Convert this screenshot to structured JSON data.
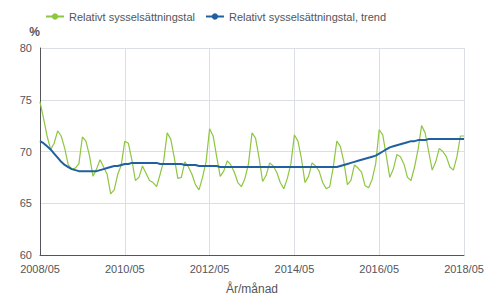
{
  "chart_data": {
    "type": "line",
    "xlabel": "År/månad",
    "ylabel": "%",
    "categories": [
      "2008/05",
      null,
      null,
      null,
      null,
      null,
      null,
      null,
      null,
      null,
      null,
      null,
      null,
      null,
      null,
      null,
      null,
      null,
      null,
      null,
      null,
      null,
      null,
      null,
      "2010/05",
      null,
      null,
      null,
      null,
      null,
      null,
      null,
      null,
      null,
      null,
      null,
      null,
      null,
      null,
      null,
      null,
      null,
      null,
      null,
      null,
      null,
      null,
      null,
      "2012/05",
      null,
      null,
      null,
      null,
      null,
      null,
      null,
      null,
      null,
      null,
      null,
      null,
      null,
      null,
      null,
      null,
      null,
      null,
      null,
      null,
      null,
      null,
      null,
      "2014/05",
      null,
      null,
      null,
      null,
      null,
      null,
      null,
      null,
      null,
      null,
      null,
      null,
      null,
      null,
      null,
      null,
      null,
      null,
      null,
      null,
      null,
      null,
      null,
      "2016/05",
      null,
      null,
      null,
      null,
      null,
      null,
      null,
      null,
      null,
      null,
      null,
      null,
      null,
      null,
      null,
      null,
      null,
      null,
      null,
      null,
      null,
      null,
      null,
      "2018/05"
    ],
    "series": [
      {
        "name": "Relativt sysselsättningstal",
        "color": "#8dc63f",
        "values": [
          74.8,
          73.2,
          71.5,
          70.2,
          70.8,
          72.0,
          71.5,
          70.3,
          68.7,
          68.3,
          68.4,
          68.8,
          71.4,
          71.0,
          69.6,
          67.6,
          68.3,
          69.2,
          68.5,
          67.8,
          65.9,
          66.3,
          67.8,
          68.7,
          71.0,
          70.8,
          69.2,
          67.2,
          67.5,
          68.6,
          67.9,
          67.2,
          67.0,
          66.6,
          67.8,
          69.1,
          71.8,
          71.2,
          69.4,
          67.4,
          67.5,
          69.0,
          68.5,
          67.8,
          66.8,
          66.3,
          67.5,
          69.0,
          72.2,
          71.5,
          69.5,
          67.6,
          68.1,
          69.1,
          68.7,
          68.0,
          67.0,
          66.6,
          67.4,
          68.8,
          71.8,
          71.3,
          69.4,
          67.1,
          67.7,
          68.9,
          68.6,
          68.0,
          67.0,
          66.4,
          67.4,
          68.8,
          71.6,
          71.0,
          69.3,
          67.0,
          67.6,
          68.9,
          68.6,
          68.1,
          67.0,
          66.4,
          66.6,
          68.5,
          71.0,
          70.5,
          69.0,
          66.8,
          67.2,
          68.7,
          68.4,
          68.0,
          66.7,
          66.5,
          67.3,
          68.8,
          72.1,
          71.6,
          69.6,
          67.5,
          68.3,
          69.7,
          69.5,
          68.8,
          67.5,
          67.2,
          68.5,
          70.2,
          72.5,
          71.8,
          70.0,
          68.2,
          69.0,
          70.3,
          70.0,
          69.5,
          68.5,
          68.2,
          69.5,
          71.5,
          71.5
        ]
      },
      {
        "name": "Relativt sysselsättningstal, trend",
        "color": "#2060a0",
        "values": [
          71.0,
          70.8,
          70.5,
          70.2,
          69.8,
          69.4,
          69.0,
          68.7,
          68.5,
          68.3,
          68.2,
          68.1,
          68.1,
          68.1,
          68.1,
          68.1,
          68.1,
          68.2,
          68.3,
          68.4,
          68.5,
          68.6,
          68.6,
          68.7,
          68.8,
          68.8,
          68.9,
          68.9,
          68.9,
          68.9,
          68.9,
          68.9,
          68.9,
          68.9,
          68.8,
          68.8,
          68.8,
          68.8,
          68.8,
          68.8,
          68.8,
          68.7,
          68.7,
          68.7,
          68.7,
          68.6,
          68.6,
          68.6,
          68.6,
          68.6,
          68.6,
          68.5,
          68.5,
          68.5,
          68.5,
          68.5,
          68.5,
          68.5,
          68.5,
          68.5,
          68.5,
          68.5,
          68.5,
          68.5,
          68.5,
          68.5,
          68.5,
          68.5,
          68.5,
          68.5,
          68.5,
          68.5,
          68.5,
          68.5,
          68.5,
          68.5,
          68.5,
          68.5,
          68.5,
          68.5,
          68.5,
          68.5,
          68.5,
          68.5,
          68.5,
          68.6,
          68.7,
          68.8,
          68.9,
          69.0,
          69.1,
          69.2,
          69.3,
          69.4,
          69.5,
          69.6,
          69.8,
          70.0,
          70.2,
          70.4,
          70.5,
          70.6,
          70.7,
          70.8,
          70.9,
          71.0,
          71.0,
          71.1,
          71.1,
          71.1,
          71.2,
          71.2,
          71.2,
          71.2,
          71.2,
          71.2,
          71.2,
          71.2,
          71.2,
          71.2,
          71.2
        ]
      }
    ],
    "ylim": [
      60,
      80
    ],
    "yticks": [
      60,
      65,
      70,
      75,
      80
    ],
    "grid": true,
    "legend": "upper left"
  }
}
